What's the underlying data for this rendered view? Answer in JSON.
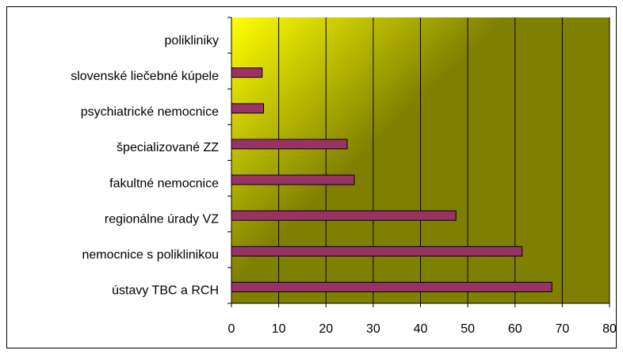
{
  "chart_data": {
    "type": "bar",
    "orientation": "horizontal",
    "categories": [
      "polikliniky",
      "slovenské liečebné kúpele",
      "psychiatrické nemocnice",
      "špecializované ZZ",
      "fakultné nemocnice",
      "regionálne úrady VZ",
      "nemocnice s poliklinikou",
      "ústavy TBC a RCH"
    ],
    "values": [
      0,
      6.5,
      6.8,
      24.5,
      26,
      47.5,
      61.5,
      67.8
    ],
    "color": "#993366",
    "xlim": [
      0,
      80
    ],
    "xticks": [
      0,
      10,
      20,
      30,
      40,
      50,
      60,
      70,
      80
    ],
    "grid": true
  }
}
